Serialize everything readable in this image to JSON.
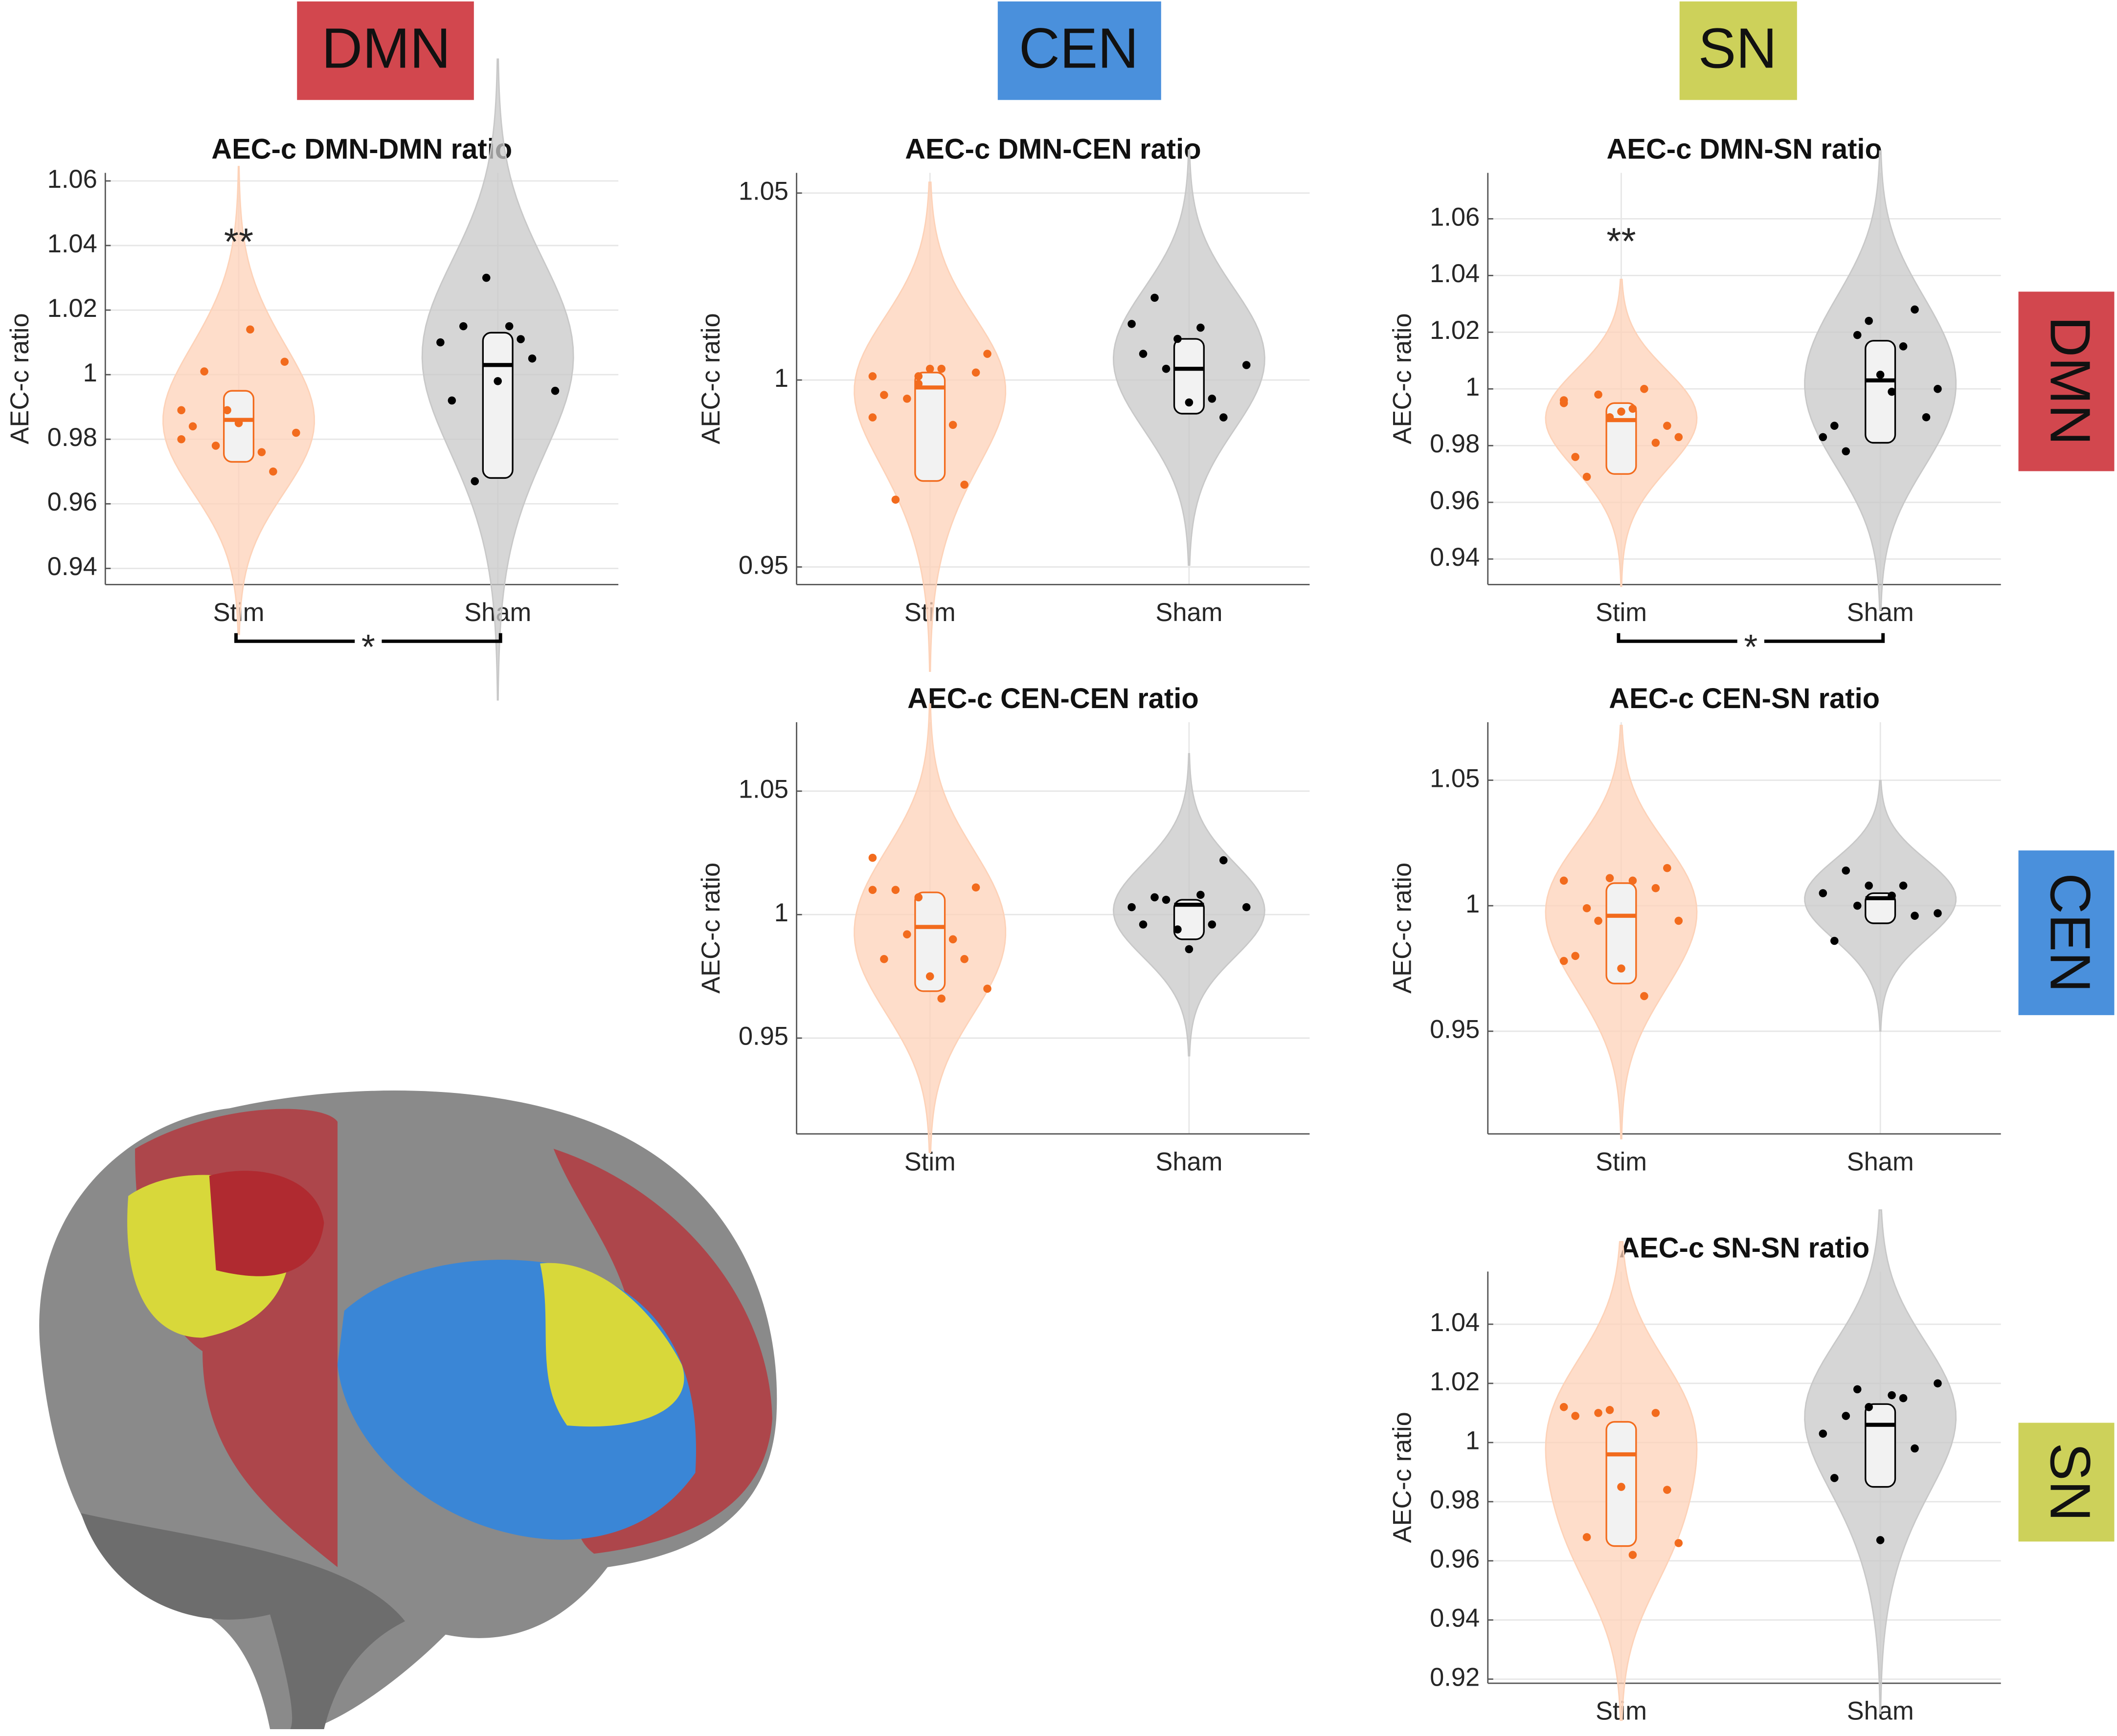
{
  "headers": {
    "columns": [
      {
        "text": "DMN",
        "color": "#d2474e"
      },
      {
        "text": "CEN",
        "color": "#4a90dc"
      },
      {
        "text": "SN",
        "color": "#cdd15a"
      }
    ],
    "rows": [
      {
        "text": "DMN",
        "color": "#d2474e"
      },
      {
        "text": "CEN",
        "color": "#4a90dc"
      },
      {
        "text": "SN",
        "color": "#cdd15a"
      }
    ]
  },
  "chart_data": [
    {
      "type": "violin",
      "title": "AEC-c DMN-DMN ratio",
      "ylabel": "AEC-c ratio",
      "categories": [
        "Stim",
        "Sham"
      ],
      "ylim": [
        0.935,
        1.0625
      ],
      "yticks": [
        0.94,
        0.96,
        0.98,
        1,
        1.02,
        1.04,
        1.06
      ],
      "grid": true,
      "groups": [
        {
          "color": "#f26b1d",
          "values": [
            0.989,
            0.989,
            0.97,
            0.984,
            0.985,
            1.004,
            1.001,
            1.014,
            0.982,
            0.978,
            0.976,
            0.98
          ],
          "median": 0.986,
          "q1": 0.973,
          "q3": 0.995
        },
        {
          "color": "#000000",
          "values": [
            1.015,
            1.015,
            0.995,
            0.967,
            1.011,
            1.01,
            1.03,
            1.005,
            0.992,
            0.998
          ],
          "median": 1.003,
          "q1": 0.968,
          "q3": 1.013
        }
      ],
      "annotations": [
        {
          "text": "**",
          "category": 0,
          "y": 1.042
        }
      ],
      "bracket": "*"
    },
    {
      "type": "violin",
      "title": "AEC-c DMN-CEN ratio",
      "ylabel": "AEC-c ratio",
      "categories": [
        "Stim",
        "Sham"
      ],
      "ylim": [
        0.9453,
        1.0554
      ],
      "yticks": [
        0.95,
        1,
        1.05
      ],
      "grid": true,
      "groups": [
        {
          "color": "#f26b1d",
          "values": [
            1.001,
            0.999,
            0.972,
            0.996,
            1.003,
            1.002,
            0.968,
            1.003,
            1.007,
            0.995,
            0.988,
            0.99,
            1.001
          ],
          "median": 0.998,
          "q1": 0.973,
          "q3": 1.002
        },
        {
          "color": "#000000",
          "values": [
            1.022,
            1.014,
            1.004,
            1.003,
            0.995,
            1.015,
            1.011,
            0.99,
            1.007,
            0.994
          ],
          "median": 1.003,
          "q1": 0.991,
          "q3": 1.011
        }
      ]
    },
    {
      "type": "violin",
      "title": "AEC-c DMN-SN ratio",
      "ylabel": "AEC-c ratio",
      "categories": [
        "Stim",
        "Sham"
      ],
      "ylim": [
        0.931,
        1.0762
      ],
      "yticks": [
        0.94,
        0.96,
        0.98,
        1,
        1.02,
        1.04,
        1.06
      ],
      "grid": true,
      "groups": [
        {
          "color": "#f26b1d",
          "values": [
            0.996,
            0.99,
            0.981,
            0.976,
            0.992,
            0.987,
            0.969,
            0.993,
            0.983,
            0.998,
            1.0,
            0.995
          ],
          "median": 0.989,
          "q1": 0.97,
          "q3": 0.995
        },
        {
          "color": "#000000",
          "values": [
            0.978,
            0.999,
            1.0,
            1.019,
            1.015,
            0.983,
            1.024,
            1.028,
            0.987,
            1.005,
            0.99
          ],
          "median": 1.003,
          "q1": 0.981,
          "q3": 1.017
        }
      ],
      "annotations": [
        {
          "text": "**",
          "category": 0,
          "y": 1.053
        }
      ],
      "bracket": "*"
    },
    {
      "type": "violin",
      "title": "AEC-c CEN-CEN ratio",
      "ylabel": "AEC-c ratio",
      "categories": [
        "Stim",
        "Sham"
      ],
      "ylim": [
        0.9112,
        1.0779
      ],
      "yticks": [
        0.95,
        1,
        1.05
      ],
      "grid": true,
      "groups": [
        {
          "color": "#f26b1d",
          "values": [
            1.01,
            1.007,
            0.982,
            0.982,
            0.975,
            1.011,
            1.01,
            0.966,
            0.97,
            0.992,
            0.99,
            1.023
          ],
          "median": 0.995,
          "q1": 0.969,
          "q3": 1.009
        },
        {
          "color": "#000000",
          "values": [
            1.007,
            1.008,
            1.003,
            1.006,
            0.996,
            1.003,
            0.994,
            1.022,
            0.996,
            0.986
          ],
          "median": 1.004,
          "q1": 0.99,
          "q3": 1.006
        }
      ]
    },
    {
      "type": "violin",
      "title": "AEC-c CEN-SN ratio",
      "ylabel": "AEC-c ratio",
      "categories": [
        "Stim",
        "Sham"
      ],
      "ylim": [
        0.9091,
        1.0731
      ],
      "yticks": [
        0.95,
        1,
        1.05
      ],
      "grid": true,
      "groups": [
        {
          "color": "#f26b1d",
          "values": [
            1.01,
            1.011,
            1.007,
            0.98,
            0.975,
            1.015,
            0.999,
            1.01,
            0.994,
            0.994,
            0.964,
            0.978
          ],
          "median": 0.996,
          "q1": 0.969,
          "q3": 1.009
        },
        {
          "color": "#000000",
          "values": [
            1.014,
            1.004,
            0.997,
            1.0,
            1.008,
            1.005,
            1.008,
            0.996,
            0.986
          ],
          "median": 1.003,
          "q1": 0.993,
          "q3": 1.005
        }
      ]
    },
    {
      "type": "violin",
      "title": "AEC-c SN-SN ratio",
      "ylabel": "AEC-c ratio",
      "categories": [
        "Stim",
        "Sham"
      ],
      "ylim": [
        0.9186,
        1.0578
      ],
      "yticks": [
        0.92,
        0.94,
        0.96,
        0.98,
        1,
        1.02,
        1.04
      ],
      "grid": true,
      "groups": [
        {
          "color": "#f26b1d",
          "values": [
            1.012,
            1.011,
            1.01,
            1.009,
            0.985,
            0.984,
            0.968,
            0.962,
            0.966,
            1.01
          ],
          "median": 0.996,
          "q1": 0.965,
          "q3": 1.007
        },
        {
          "color": "#000000",
          "values": [
            1.009,
            1.016,
            1.02,
            1.018,
            1.015,
            1.003,
            1.012,
            0.998,
            0.988,
            0.967
          ],
          "median": 1.006,
          "q1": 0.985,
          "q3": 1.013
        }
      ]
    }
  ]
}
